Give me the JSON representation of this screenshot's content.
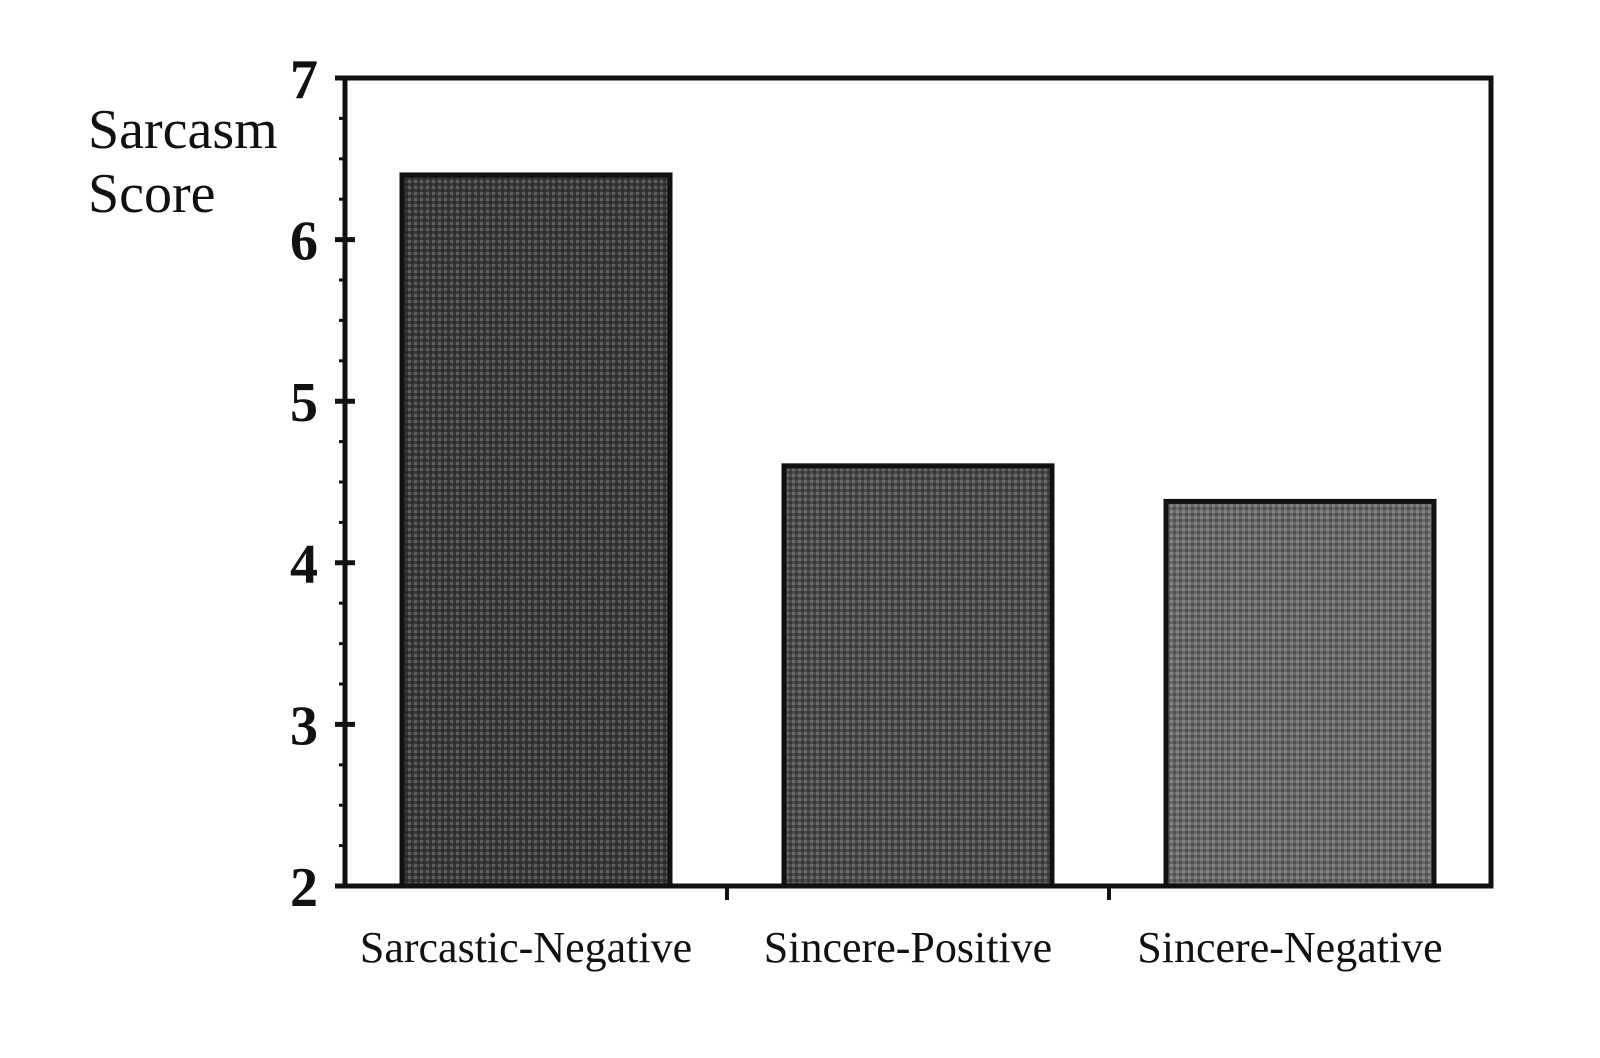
{
  "chart_data": {
    "type": "bar",
    "title": "",
    "xlabel": "",
    "ylabel_lines": [
      "Sarcasm",
      "Score"
    ],
    "ylabel": "Sarcasm Score",
    "ylim": [
      2,
      7
    ],
    "yticks": [
      2,
      3,
      4,
      5,
      6,
      7
    ],
    "yticks_labeled": [
      "2",
      "3",
      "4",
      "5",
      "6",
      "7"
    ],
    "minor_tick_step": 0.25,
    "categories": [
      "Sarcastic-Negative",
      "Sincere-Positive",
      "Sincere-Negative"
    ],
    "values": [
      6.4,
      4.6,
      4.38
    ],
    "bar_colors": [
      "#3a3a3a",
      "#4a4a4a",
      "#686868"
    ],
    "frame": "box",
    "grid": false,
    "legend": "none"
  }
}
